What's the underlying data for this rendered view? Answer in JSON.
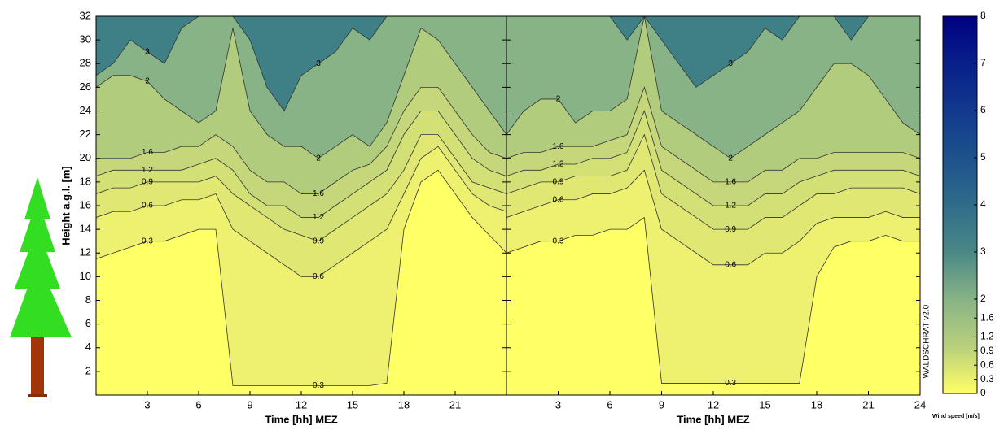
{
  "chart_data": {
    "type": "contour",
    "ylabel": "Height a.g.l. [m]",
    "ylim": [
      0,
      32
    ],
    "yticks": [
      2,
      4,
      6,
      8,
      10,
      12,
      14,
      16,
      18,
      20,
      22,
      24,
      26,
      28,
      30,
      32
    ],
    "base_color": "#ffff66",
    "panels": [
      {
        "xlabel": "Time [hh] MEZ",
        "xlim": [
          0,
          24
        ],
        "xticks": [
          3,
          6,
          9,
          12,
          15,
          18,
          21
        ],
        "x": [
          0,
          1,
          2,
          3,
          4,
          5,
          6,
          7,
          8,
          9,
          10,
          11,
          12,
          13,
          14,
          15,
          16,
          17,
          18,
          19,
          20,
          21,
          22,
          23,
          24
        ],
        "series": [
          {
            "level": 0.3,
            "color": "#eef070",
            "values": [
              11.5,
              12,
              12.5,
              13,
              13,
              13.5,
              14,
              14,
              0.8,
              0.8,
              0.8,
              0.8,
              0.8,
              0.8,
              0.8,
              0.8,
              0.8,
              1,
              14,
              18,
              19,
              17,
              15,
              13.5,
              12
            ]
          },
          {
            "level": 0.6,
            "color": "#e0e873",
            "values": [
              15,
              15.5,
              15.5,
              16,
              16,
              16.5,
              16.5,
              17,
              14,
              13,
              12,
              11,
              10,
              10,
              11,
              12,
              13,
              14,
              17,
              20,
              21,
              19,
              17,
              16,
              15.5
            ]
          },
          {
            "level": 0.9,
            "color": "#d3e076",
            "values": [
              17,
              17.5,
              17.5,
              18,
              18,
              18,
              18,
              18.5,
              17,
              16,
              15,
              14,
              13.5,
              13,
              14,
              15,
              16,
              17,
              19,
              22,
              22,
              20,
              18,
              17.5,
              17
            ]
          },
          {
            "level": 1.2,
            "color": "#c5d77a",
            "values": [
              18.5,
              19,
              19,
              19,
              19,
              19,
              19.5,
              20,
              19,
              17,
              16,
              16,
              15,
              15,
              16,
              17,
              18,
              19,
              22,
              24,
              24,
              22,
              20,
              19,
              18.5
            ]
          },
          {
            "level": 1.6,
            "color": "#b2cc7e",
            "values": [
              20,
              20,
              20,
              20.5,
              20.5,
              21,
              21,
              22,
              21,
              19,
              18,
              18,
              17,
              17,
              18,
              19,
              19.5,
              21,
              24,
              26,
              26,
              24,
              22,
              20.5,
              20
            ]
          },
          {
            "level": 2,
            "color": "#88b386",
            "values": [
              26,
              27,
              27,
              26.5,
              25,
              24,
              23,
              24,
              31,
              24,
              22,
              21,
              21,
              20,
              21,
              22,
              21,
              23,
              27,
              31,
              30,
              28,
              26,
              24,
              22
            ]
          },
          {
            "level": 3,
            "color": "#3f7f86",
            "values": [
              27,
              28,
              30,
              29,
              28,
              31,
              32,
              32,
              32,
              30,
              26,
              24,
              27,
              28,
              29,
              31,
              30,
              32,
              32,
              32,
              32,
              32,
              32,
              32,
              32
            ]
          }
        ]
      },
      {
        "xlabel": "Time [hh] MEZ",
        "xlim": [
          0,
          24
        ],
        "xticks": [
          3,
          6,
          9,
          12,
          15,
          18,
          21,
          24
        ],
        "x": [
          0,
          1,
          2,
          3,
          4,
          5,
          6,
          7,
          8,
          9,
          10,
          11,
          12,
          13,
          14,
          15,
          16,
          17,
          18,
          19,
          20,
          21,
          22,
          23,
          24
        ],
        "series": [
          {
            "level": 0.3,
            "color": "#eef070",
            "values": [
              12,
              12.5,
              13,
              13,
              13.5,
              13.5,
              14,
              14,
              15,
              1,
              1,
              1,
              1,
              1,
              1,
              1,
              1,
              1,
              10,
              12.5,
              13,
              13,
              13.5,
              13,
              13
            ]
          },
          {
            "level": 0.6,
            "color": "#e0e873",
            "values": [
              15,
              15.5,
              16,
              16.5,
              16.5,
              17,
              17,
              17.5,
              19,
              14,
              13,
              12,
              11,
              11,
              11,
              12,
              12,
              13,
              14.5,
              15,
              15,
              15,
              15.5,
              15,
              15
            ]
          },
          {
            "level": 0.9,
            "color": "#d3e076",
            "values": [
              17,
              17.5,
              18,
              18,
              18.5,
              18.5,
              18.5,
              19,
              22,
              17,
              16,
              15,
              14,
              14,
              14,
              15,
              15,
              16,
              17,
              17,
              17.5,
              17.5,
              17.5,
              17.5,
              17
            ]
          },
          {
            "level": 1.2,
            "color": "#c5d77a",
            "values": [
              18.5,
              19,
              19,
              19.5,
              19.5,
              20,
              20,
              20.5,
              24,
              19,
              18,
              17,
              16,
              16,
              16,
              17,
              17,
              18,
              18.5,
              19,
              19,
              19,
              19,
              19,
              18.5
            ]
          },
          {
            "level": 1.6,
            "color": "#b2cc7e",
            "values": [
              20,
              20.5,
              20.5,
              21,
              21,
              21,
              21.5,
              22,
              26,
              21,
              20,
              19,
              18,
              18,
              18,
              19,
              19,
              20,
              20,
              20.5,
              20.5,
              20.5,
              20.5,
              20.5,
              20
            ]
          },
          {
            "level": 2,
            "color": "#88b386",
            "values": [
              22,
              24,
              25,
              25,
              23,
              24,
              24,
              25,
              32,
              24,
              23,
              22,
              21,
              20,
              21,
              22,
              23,
              24,
              26,
              28,
              28,
              27,
              25,
              23,
              22
            ]
          },
          {
            "level": 3,
            "color": "#3f7f86",
            "values": [
              32,
              32,
              32,
              32,
              32,
              32,
              32,
              30,
              32,
              30,
              28,
              26,
              27,
              28,
              29,
              31,
              30,
              32,
              32,
              32,
              30,
              32,
              32,
              32,
              32
            ]
          }
        ]
      }
    ],
    "colorbar": {
      "label": "Wind speed [m/s]",
      "lim": [
        0,
        8
      ],
      "ticks": [
        0,
        0.3,
        0.6,
        0.9,
        1.2,
        1.6,
        2,
        3,
        4,
        5,
        6,
        7,
        8
      ],
      "colors": [
        "#ffff66",
        "#b8d07c",
        "#88b386",
        "#4a8886",
        "#2f6c8a",
        "#1d528c",
        "#12398e",
        "#081f8a",
        "#000080"
      ]
    },
    "version": "WALDSCHRAT v2.0"
  }
}
